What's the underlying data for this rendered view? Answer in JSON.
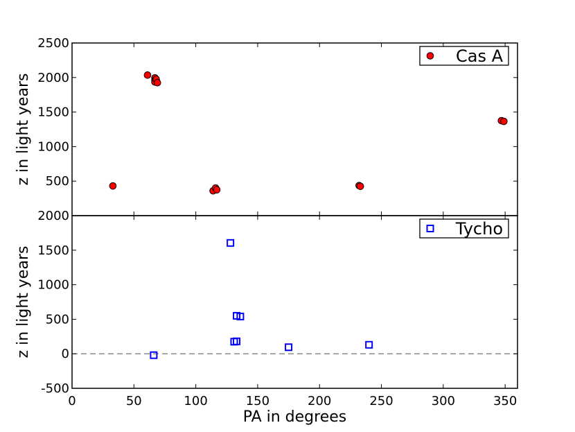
{
  "chart_data": [
    {
      "type": "scatter",
      "panel": "top",
      "xlim": [
        0,
        360
      ],
      "ylim": [
        0,
        2500
      ],
      "xticks": [
        0,
        50,
        100,
        150,
        200,
        250,
        300,
        350
      ],
      "yticks": [
        500,
        1000,
        1500,
        2000,
        2500
      ],
      "ylabel": "z in light years",
      "legend_placement": "top-right",
      "grid": false,
      "series": [
        {
          "name": "Cas A",
          "marker": "circle",
          "color": "#ff0000",
          "points": [
            {
              "x": 33,
              "y": 430
            },
            {
              "x": 61,
              "y": 2035
            },
            {
              "x": 67,
              "y": 1995
            },
            {
              "x": 67,
              "y": 1960
            },
            {
              "x": 67,
              "y": 1935
            },
            {
              "x": 68,
              "y": 1975
            },
            {
              "x": 69,
              "y": 1925
            },
            {
              "x": 114,
              "y": 360
            },
            {
              "x": 116,
              "y": 400
            },
            {
              "x": 117,
              "y": 375
            },
            {
              "x": 232,
              "y": 435
            },
            {
              "x": 233,
              "y": 425
            },
            {
              "x": 347,
              "y": 1375
            },
            {
              "x": 349,
              "y": 1365
            }
          ]
        }
      ]
    },
    {
      "type": "scatter",
      "panel": "bottom",
      "xlim": [
        0,
        360
      ],
      "ylim": [
        -500,
        2000
      ],
      "xticks": [
        0,
        50,
        100,
        150,
        200,
        250,
        300,
        350
      ],
      "yticks": [
        -500,
        0,
        500,
        1000,
        1500,
        2000
      ],
      "xlabel": "PA in degrees",
      "ylabel": "z in light years",
      "legend_placement": "top-right",
      "grid": false,
      "reference_line": {
        "y": 0,
        "style": "dashed",
        "color": "#808080"
      },
      "series": [
        {
          "name": "Tycho",
          "marker": "square-open",
          "color": "#0000ff",
          "points": [
            {
              "x": 66,
              "y": -20
            },
            {
              "x": 128,
              "y": 1605
            },
            {
              "x": 131,
              "y": 175
            },
            {
              "x": 133,
              "y": 180
            },
            {
              "x": 133,
              "y": 550
            },
            {
              "x": 136,
              "y": 540
            },
            {
              "x": 175,
              "y": 95
            },
            {
              "x": 240,
              "y": 130
            }
          ]
        }
      ]
    }
  ]
}
